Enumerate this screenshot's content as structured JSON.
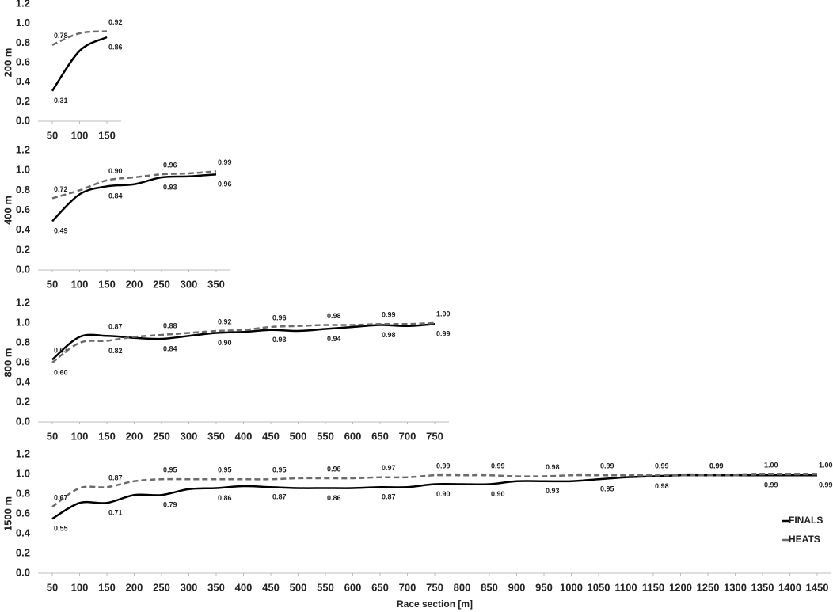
{
  "chart_data": [
    {
      "type": "line",
      "y_label": "200 m",
      "x": [
        50,
        100,
        150
      ],
      "xlim": [
        50,
        150
      ],
      "xticks": [
        50,
        100,
        150
      ],
      "ylim": [
        0,
        1.2
      ],
      "yticks": [
        {
          "value": 0,
          "label": "0.0"
        },
        0.2,
        0.4,
        0.6,
        0.8,
        {
          "value": 1,
          "label": "1.0"
        },
        1.2
      ],
      "series": [
        {
          "color": "#000000",
          "dash": false,
          "values": [
            0.31,
            0.72,
            0.86
          ],
          "value_labels": [
            "0.31",
            null,
            "0.86"
          ]
        },
        {
          "color": "#6b6b6b",
          "dash": true,
          "values": [
            0.78,
            0.9,
            0.92
          ],
          "value_labels": [
            "0.78",
            null,
            "0.92"
          ]
        }
      ]
    },
    {
      "type": "line",
      "y_label": "400 m",
      "x": [
        50,
        100,
        150,
        200,
        250,
        300,
        350
      ],
      "xlim": [
        50,
        350
      ],
      "xticks": [
        50,
        100,
        150,
        200,
        250,
        300,
        350
      ],
      "ylim": [
        0,
        1.2
      ],
      "yticks": [
        {
          "value": 0,
          "label": "0.0"
        },
        0.2,
        0.4,
        0.6,
        0.8,
        {
          "value": 1,
          "label": "1.0"
        },
        1.2
      ],
      "series": [
        {
          "color": "#000000",
          "dash": false,
          "values": [
            0.49,
            0.76,
            0.84,
            0.86,
            0.93,
            0.94,
            0.96
          ],
          "value_labels": [
            "0.49",
            null,
            "0.84",
            null,
            "0.93",
            null,
            "0.96"
          ]
        },
        {
          "color": "#6b6b6b",
          "dash": true,
          "values": [
            0.72,
            0.8,
            0.9,
            0.93,
            0.96,
            0.97,
            0.99
          ],
          "value_labels": [
            "0.72",
            null,
            "0.90",
            null,
            "0.96",
            null,
            "0.99"
          ]
        }
      ]
    },
    {
      "type": "line",
      "y_label": "800 m",
      "x": [
        50,
        100,
        150,
        200,
        250,
        300,
        350,
        400,
        450,
        500,
        550,
        600,
        650,
        700,
        750
      ],
      "xlim": [
        50,
        750
      ],
      "xticks": [
        50,
        100,
        150,
        200,
        250,
        300,
        350,
        400,
        450,
        500,
        550,
        600,
        650,
        700,
        750
      ],
      "ylim": [
        0,
        1.2
      ],
      "yticks": [
        {
          "value": 0,
          "label": "0.0"
        },
        0.2,
        0.4,
        0.6,
        0.8,
        {
          "value": 1,
          "label": "1.0"
        },
        1.2
      ],
      "series": [
        {
          "color": "#000000",
          "dash": false,
          "values": [
            0.63,
            0.86,
            0.87,
            0.85,
            0.84,
            0.87,
            0.9,
            0.91,
            0.93,
            0.92,
            0.94,
            0.96,
            0.98,
            0.97,
            0.99
          ],
          "value_labels": [
            "0.63",
            null,
            "0.87",
            null,
            "0.84",
            null,
            "0.90",
            null,
            "0.93",
            null,
            "0.94",
            null,
            "0.98",
            null,
            "0.99"
          ]
        },
        {
          "color": "#6b6b6b",
          "dash": true,
          "values": [
            0.6,
            0.8,
            0.82,
            0.86,
            0.88,
            0.9,
            0.92,
            0.93,
            0.96,
            0.97,
            0.98,
            0.98,
            0.99,
            0.99,
            1.0
          ],
          "value_labels": [
            "0.60",
            null,
            "0.82",
            null,
            "0.88",
            null,
            "0.92",
            null,
            "0.96",
            null,
            "0.98",
            null,
            "0.99",
            null,
            "1.00"
          ]
        }
      ]
    },
    {
      "type": "line",
      "y_label": "1500 m",
      "x_label": "Race section [m]",
      "legend": "right",
      "x": [
        50,
        100,
        150,
        200,
        250,
        300,
        350,
        400,
        450,
        500,
        550,
        600,
        650,
        700,
        750,
        800,
        850,
        900,
        950,
        1000,
        1050,
        1100,
        1150,
        1200,
        1250,
        1300,
        1350,
        1400,
        1450
      ],
      "xlim": [
        50,
        1450
      ],
      "xticks": [
        50,
        100,
        150,
        200,
        250,
        300,
        350,
        400,
        450,
        500,
        550,
        600,
        650,
        700,
        750,
        800,
        850,
        900,
        950,
        1000,
        1050,
        1100,
        1150,
        1200,
        1250,
        1300,
        1350,
        1400,
        1450
      ],
      "ylim": [
        0,
        1.2
      ],
      "yticks": [
        {
          "value": 0,
          "label": "0.0"
        },
        0.2,
        0.4,
        0.6,
        0.8,
        {
          "value": 1,
          "label": "1.0"
        },
        1.2
      ],
      "series": [
        {
          "name": "FINALS",
          "color": "#000000",
          "dash": false,
          "values": [
            0.55,
            0.71,
            0.71,
            0.79,
            0.79,
            0.85,
            0.86,
            0.88,
            0.87,
            0.86,
            0.86,
            0.86,
            0.87,
            0.87,
            0.9,
            0.9,
            0.9,
            0.93,
            0.93,
            0.93,
            0.95,
            0.97,
            0.98,
            0.99,
            0.99,
            0.99,
            0.99,
            0.99,
            0.99
          ],
          "value_labels": [
            "0.55",
            null,
            "0.71",
            null,
            "0.79",
            null,
            "0.86",
            null,
            "0.87",
            null,
            "0.86",
            null,
            "0.87",
            null,
            "0.90",
            null,
            "0.90",
            null,
            "0.93",
            null,
            "0.95",
            null,
            "0.98",
            null,
            "0.99",
            null,
            "0.99",
            null,
            "0.99"
          ]
        },
        {
          "name": "HEATS",
          "color": "#6b6b6b",
          "dash": true,
          "values": [
            0.67,
            0.86,
            0.87,
            0.93,
            0.95,
            0.95,
            0.95,
            0.95,
            0.95,
            0.96,
            0.96,
            0.96,
            0.97,
            0.97,
            0.99,
            0.99,
            0.99,
            0.98,
            0.98,
            0.99,
            0.99,
            0.99,
            0.99,
            0.99,
            0.99,
            0.99,
            1.0,
            1.0,
            1.0
          ],
          "value_labels": [
            "0.67",
            null,
            "0.87",
            null,
            "0.95",
            null,
            "0.95",
            null,
            "0.95",
            null,
            "0.96",
            null,
            "0.97",
            null,
            "0.99",
            null,
            "0.99",
            null,
            "0.98",
            null,
            "0.99",
            null,
            "0.99",
            null,
            "0.99",
            null,
            "1.00",
            null,
            "1.00"
          ]
        }
      ]
    }
  ]
}
